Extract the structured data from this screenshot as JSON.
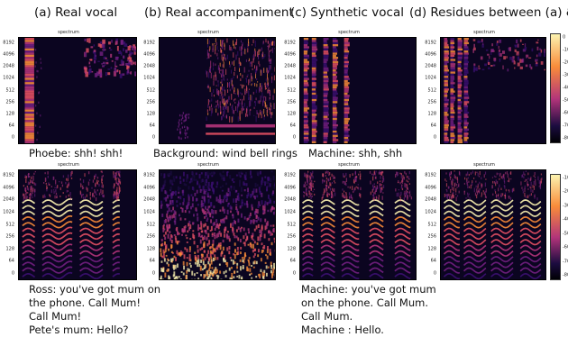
{
  "columns": [
    {
      "title": "(a) Real vocal"
    },
    {
      "title": "(b) Real accompaniment"
    },
    {
      "title": "(c) Synthetic vocal"
    },
    {
      "title": "(d) Residues between (a) & (c)"
    }
  ],
  "spectrogram_header": "spectrum",
  "y_ticks": [
    "8192",
    "4096",
    "2048",
    "1024",
    "512",
    "256",
    "128",
    "64",
    "0"
  ],
  "colorbar_ticks": [
    "0",
    "-10",
    "-20",
    "-30",
    "-40",
    "-50",
    "-60",
    "-70",
    "-80"
  ],
  "colorbar_ticks_row2": [
    "-10",
    "-20",
    "-30",
    "-40",
    "-50",
    "-60",
    "-70",
    "-80"
  ],
  "captions_row1": {
    "a": {
      "speaker": "Phoebe",
      "text": ": shh! shh!"
    },
    "b": {
      "speaker": "Background",
      "text": ": wind bell rings"
    },
    "c": {
      "speaker": "Machine",
      "text": ": shh, shh"
    }
  },
  "captions_row2": {
    "a": {
      "line1_speaker": "Ross",
      "line1_text": ": you've got mum on",
      "line2": "the phone. Call Mum!",
      "line3": "Call Mum!",
      "line4_speaker": "Pete's mum",
      "line4_text": ": Hello?"
    },
    "c": {
      "line1_speaker": "Machine",
      "line1_text": ": you've got mum",
      "line2": "on the phone. Call Mum.",
      "line3": "Call Mum.",
      "line4_speaker": "Machine",
      "line4_text": " : Hello."
    }
  },
  "colors": {
    "spec_dark": "#0b0520",
    "magma_low": "#1b0c3f",
    "magma_mid": "#b2347a",
    "magma_high": "#f98c3a",
    "magma_top": "#fcf3b0"
  }
}
